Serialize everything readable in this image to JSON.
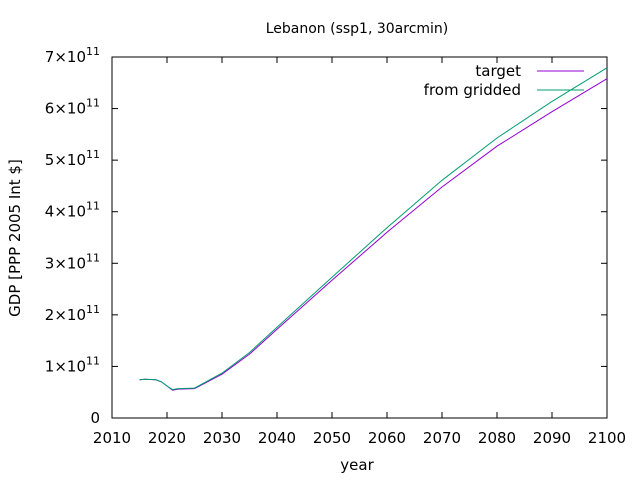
{
  "chart_data": {
    "type": "line",
    "title": "Lebanon (ssp1, 30arcmin)",
    "xlabel": "year",
    "ylabel": "GDP [PPP 2005 Int $]",
    "xlim": [
      2010,
      2100
    ],
    "ylim": [
      0,
      700000000000
    ],
    "x_ticks": [
      "2010",
      "2020",
      "2030",
      "2040",
      "2050",
      "2060",
      "2070",
      "2080",
      "2090",
      "2100"
    ],
    "y_ticks": [
      {
        "value": 0,
        "mantissa": "0",
        "base": "",
        "exp": ""
      },
      {
        "value": 100000000000,
        "mantissa": "1",
        "base": "×10",
        "exp": "11"
      },
      {
        "value": 200000000000,
        "mantissa": "2",
        "base": "×10",
        "exp": "11"
      },
      {
        "value": 300000000000,
        "mantissa": "3",
        "base": "×10",
        "exp": "11"
      },
      {
        "value": 400000000000,
        "mantissa": "4",
        "base": "×10",
        "exp": "11"
      },
      {
        "value": 500000000000,
        "mantissa": "5",
        "base": "×10",
        "exp": "11"
      },
      {
        "value": 600000000000,
        "mantissa": "6",
        "base": "×10",
        "exp": "11"
      },
      {
        "value": 700000000000,
        "mantissa": "7",
        "base": "×10",
        "exp": "11"
      }
    ],
    "grid": false,
    "legend": "top-right",
    "series": [
      {
        "name": "target",
        "color": "#9400d3",
        "x": [
          2015,
          2016,
          2018,
          2019,
          2020,
          2021,
          2022,
          2025,
          2030,
          2035,
          2040,
          2050,
          2060,
          2070,
          2080,
          2090,
          2100
        ],
        "y": [
          74000000000,
          75000000000,
          74000000000,
          70000000000,
          62000000000,
          54000000000,
          56000000000,
          57000000000,
          85000000000,
          124000000000,
          172000000000,
          267000000000,
          360000000000,
          448000000000,
          527000000000,
          594000000000,
          658000000000
        ]
      },
      {
        "name": "from gridded",
        "color": "#009e73",
        "x": [
          2015,
          2016,
          2018,
          2019,
          2020,
          2021,
          2022,
          2025,
          2030,
          2035,
          2040,
          2050,
          2060,
          2070,
          2080,
          2090,
          2100
        ],
        "y": [
          74000000000,
          75000000000,
          74000000000,
          70000000000,
          62000000000,
          55000000000,
          57000000000,
          58000000000,
          87000000000,
          127000000000,
          176000000000,
          273000000000,
          369000000000,
          461000000000,
          543000000000,
          614000000000,
          679000000000
        ]
      }
    ]
  }
}
